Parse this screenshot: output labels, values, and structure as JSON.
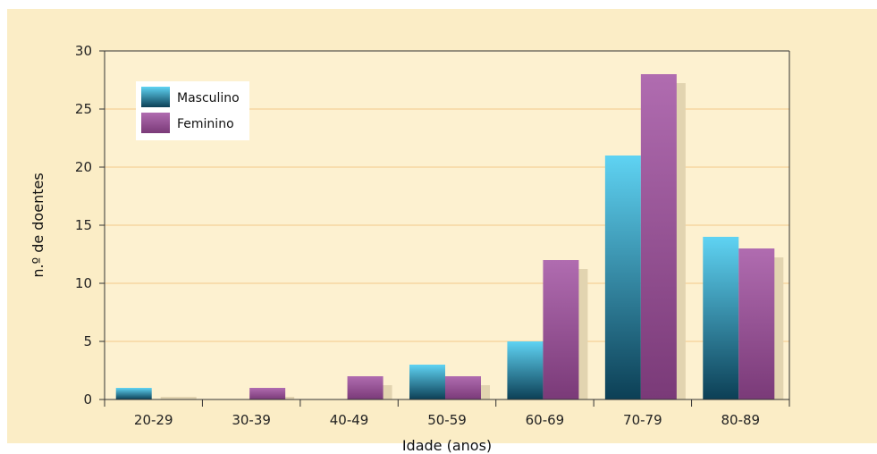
{
  "chart_data": {
    "type": "bar",
    "categories": [
      "20-29",
      "30-39",
      "40-49",
      "50-59",
      "60-69",
      "70-79",
      "80-89"
    ],
    "series": [
      {
        "name": "Masculino",
        "values": [
          1,
          0,
          0,
          3,
          5,
          21,
          14
        ]
      },
      {
        "name": "Feminino",
        "values": [
          0,
          1,
          2,
          2,
          12,
          28,
          13
        ]
      }
    ],
    "title": "",
    "xlabel": "Idade (anos)",
    "ylabel": "n.º de doentes",
    "ylim": [
      0,
      30
    ],
    "yticks": [
      "0",
      "5",
      "10",
      "15",
      "20",
      "25",
      "30"
    ],
    "grid": true,
    "legend_position": "top-left",
    "colors": {
      "panel_background": "#fbedc6",
      "plot_background": "#fdf1d0",
      "gridline": "#f2c98a",
      "masculino_top": "#5fd3f3",
      "masculino_bottom": "#0c3f55",
      "feminino_top": "#b06cb0",
      "feminino_bottom": "#7a3a78",
      "shadow": "#e2d4b0"
    }
  }
}
